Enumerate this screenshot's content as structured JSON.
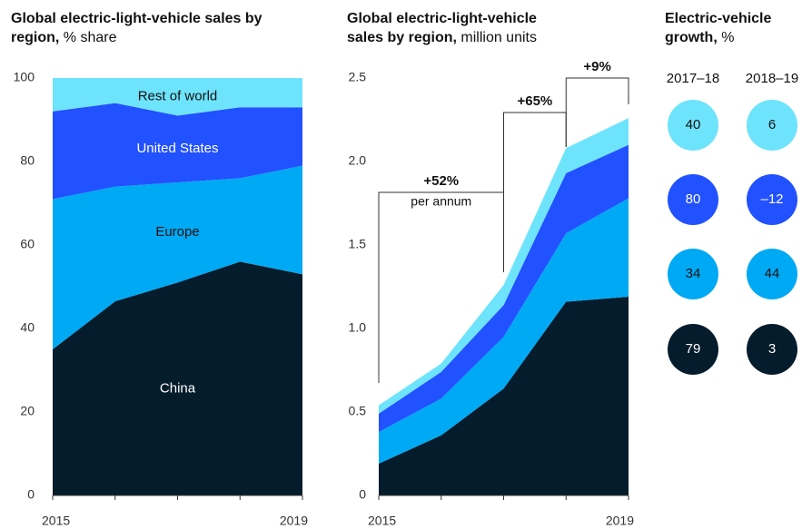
{
  "chart_data": [
    {
      "type": "area",
      "stacked": true,
      "title": "Global electric-light-vehicle sales by region,",
      "unit": "% share",
      "categories": [
        "2015",
        null,
        null,
        null,
        "2019"
      ],
      "series": [
        {
          "name": "China",
          "color": "#051c2c",
          "values": [
            35,
            46.5,
            51,
            56,
            53
          ]
        },
        {
          "name": "Europe",
          "color": "#00a9f4",
          "values": [
            36,
            27.5,
            24,
            20,
            26
          ]
        },
        {
          "name": "United States",
          "color": "#2251ff",
          "values": [
            21,
            20,
            16,
            17,
            14
          ]
        },
        {
          "name": "Rest of world",
          "color": "#6ee3fc",
          "values": [
            8,
            6,
            9,
            7,
            7
          ]
        }
      ],
      "ylim": [
        0,
        100
      ],
      "yticks": [
        0,
        20,
        40,
        60,
        80,
        100
      ]
    },
    {
      "type": "area",
      "stacked": true,
      "title": "Global electric-light-vehicle sales by region,",
      "unit": "million units",
      "categories": [
        "2015",
        null,
        null,
        null,
        "2019"
      ],
      "series": [
        {
          "name": "China",
          "color": "#051c2c",
          "values": [
            0.19,
            0.36,
            0.64,
            1.16,
            1.19
          ]
        },
        {
          "name": "Europe",
          "color": "#00a9f4",
          "values": [
            0.19,
            0.22,
            0.31,
            0.41,
            0.59
          ]
        },
        {
          "name": "United States",
          "color": "#2251ff",
          "values": [
            0.11,
            0.16,
            0.19,
            0.36,
            0.32
          ]
        },
        {
          "name": "Rest of world",
          "color": "#6ee3fc",
          "values": [
            0.05,
            0.05,
            0.12,
            0.15,
            0.16
          ]
        }
      ],
      "ylim": [
        0,
        2.5
      ],
      "yticks": [
        0,
        0.5,
        {
          "value": 1,
          "label": "1.0"
        },
        1.5,
        {
          "value": 2,
          "label": "2.0"
        },
        2.5
      ],
      "annotations": [
        {
          "text": "+52%",
          "note": "per annum"
        },
        {
          "text": "+65%"
        },
        {
          "text": "+9%"
        }
      ]
    },
    {
      "type": "bubble-table",
      "title": "Electric-vehicle growth,",
      "unit": "%",
      "categories": [
        "2017–18",
        "2018–19"
      ],
      "series": [
        {
          "color": "#6ee3fc",
          "values": [
            40,
            6
          ]
        },
        {
          "color": "#2251ff",
          "values": [
            80,
            -12
          ],
          "value_labels": [
            "80",
            "–12"
          ]
        },
        {
          "color": "#00a9f4",
          "values": [
            34,
            44
          ]
        },
        {
          "color": "#051c2c",
          "values": [
            79,
            3
          ]
        }
      ]
    }
  ]
}
